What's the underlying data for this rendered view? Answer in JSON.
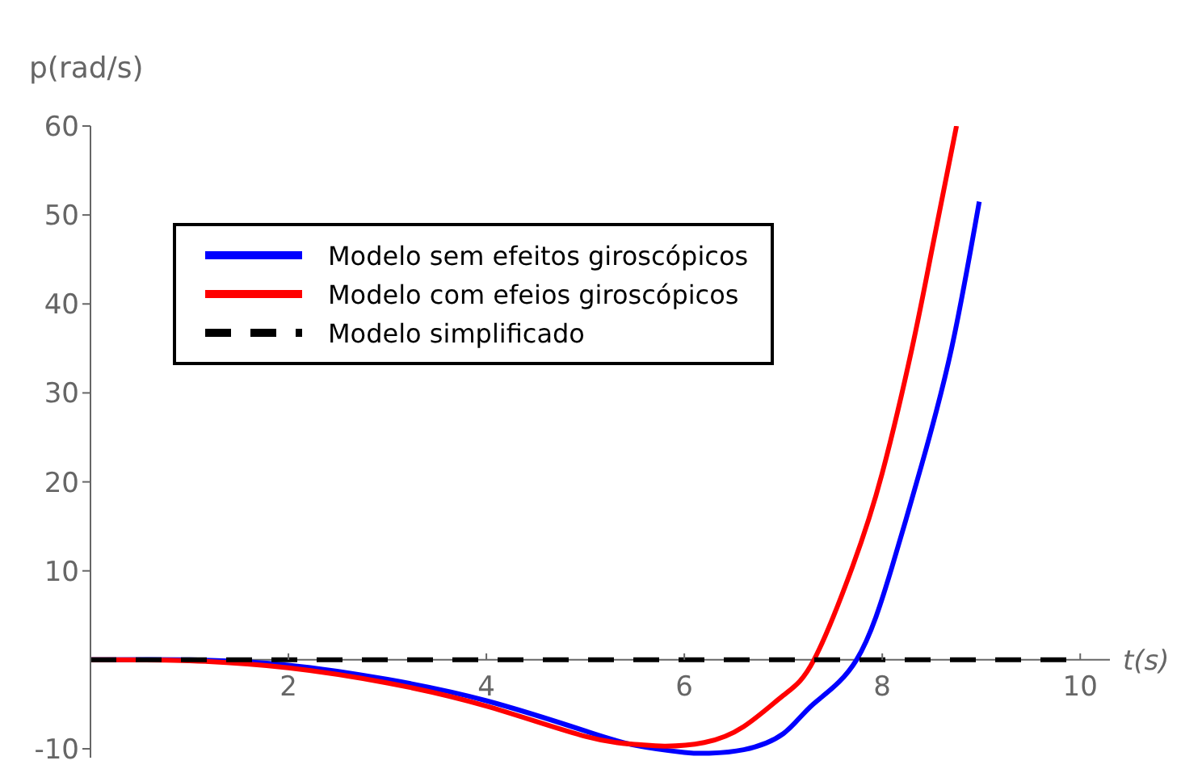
{
  "chart_data": {
    "type": "line",
    "xlabel": "t(s)",
    "ylabel": "p(rad/s)",
    "xlim": [
      0,
      10.3
    ],
    "xticks": [
      2,
      4,
      6,
      8,
      10
    ],
    "ylim": [
      -11,
      60
    ],
    "yticks": [
      -10,
      10,
      20,
      30,
      40,
      50,
      60
    ],
    "grid": false,
    "legend": "top left",
    "marker": "none",
    "series": [
      {
        "name": "Modelo sem efeitos giroscópicos",
        "color": "#0000ff",
        "line_style": "solid",
        "x": [
          0,
          1,
          2,
          3,
          4,
          5,
          5.5,
          6,
          6.25,
          6.6,
          7,
          7.3,
          7.74,
          8.1,
          8.4,
          8.7,
          8.98
        ],
        "values": [
          0,
          0,
          -0.6,
          -2.2,
          -4.6,
          -8,
          -9.6,
          -10.4,
          -10.5,
          -10.1,
          -8.3,
          -5,
          0,
          10.5,
          22,
          35,
          51.5
        ]
      },
      {
        "name": "Modelo com efeios giroscópicos",
        "color": "#ff0000",
        "line_style": "solid",
        "x": [
          0,
          1,
          2,
          3,
          4,
          5,
          5.5,
          5.8,
          6.2,
          6.6,
          7,
          7.31,
          7.7,
          8,
          8.3,
          8.5,
          8.75
        ],
        "values": [
          0,
          -0.1,
          -0.9,
          -2.6,
          -5.2,
          -8.6,
          -9.5,
          -9.7,
          -9.3,
          -7.5,
          -4,
          0,
          10.5,
          21,
          35,
          46,
          60
        ]
      },
      {
        "name": "Modelo simplificado",
        "color": "#000000",
        "line_style": "dashed",
        "x": [
          0,
          10.05
        ],
        "values": [
          0,
          0
        ]
      }
    ]
  }
}
